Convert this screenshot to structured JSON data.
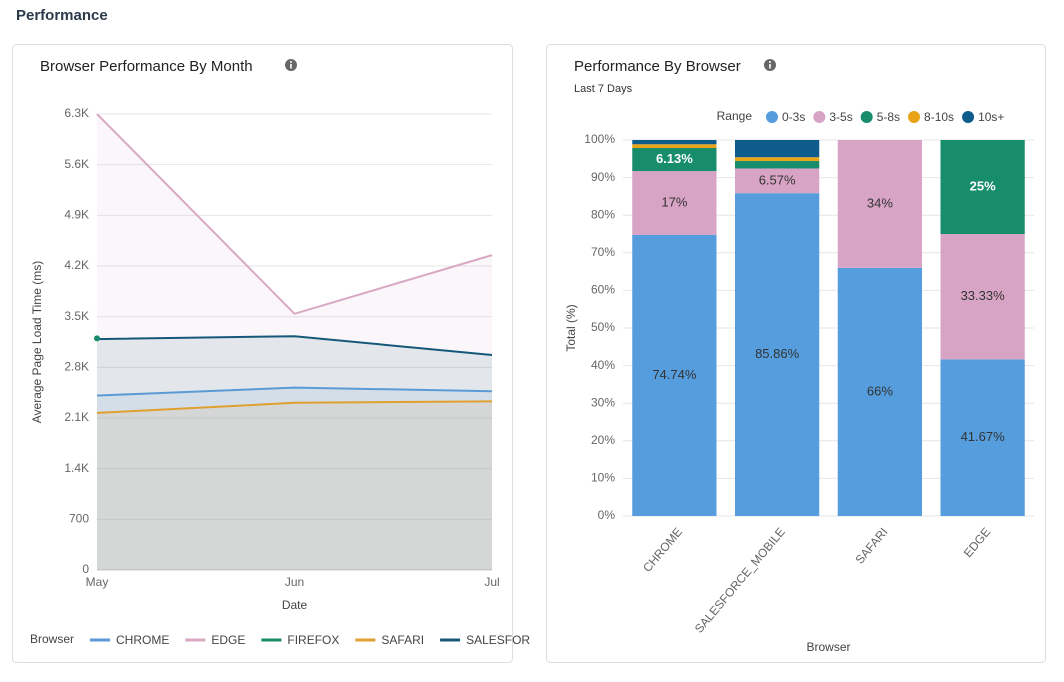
{
  "title": "Performance",
  "chart_data": [
    {
      "type": "line",
      "title": "Browser Performance By Month",
      "x_label": "Date",
      "y_label": "Average Page Load Time (ms)",
      "legend_title": "Browser",
      "legend": "bottom",
      "categories": [
        "May",
        "Jun",
        "Jul"
      ],
      "ylim": [
        0,
        6300
      ],
      "yticks": [
        0,
        700,
        {
          "value": 1400,
          "label": "1.4K"
        },
        {
          "value": 2100,
          "label": "2.1K"
        },
        {
          "value": 2800,
          "label": "2.8K"
        },
        {
          "value": 3500,
          "label": "3.5K"
        },
        {
          "value": 4200,
          "label": "4.2K"
        },
        {
          "value": 4900,
          "label": "4.9K"
        },
        {
          "value": 5600,
          "label": "5.6K"
        },
        {
          "value": 6300,
          "label": "6.3K"
        }
      ],
      "grid": true,
      "series": [
        {
          "name": "CHROME",
          "color": "#5b9bd5",
          "values": [
            2410,
            2520,
            2470
          ]
        },
        {
          "name": "EDGE",
          "color": "#d9a9c3",
          "values": [
            6300,
            3540,
            4350
          ]
        },
        {
          "name": "FIREFOX",
          "color": "#1a8a6a",
          "values": [
            3200,
            null,
            null
          ]
        },
        {
          "name": "SAFARI",
          "color": "#e0a030",
          "values": [
            2170,
            2310,
            2330
          ]
        },
        {
          "name": "SALESFOR",
          "color": "#16587a",
          "values": [
            3190,
            3230,
            2970
          ]
        }
      ]
    },
    {
      "type": "stacked_bar",
      "title": "Performance By Browser",
      "subtitle": "Last 7 Days",
      "x_label": "Browser",
      "y_label": "Total (%)",
      "legend_title": "Range",
      "legend": "top",
      "categories": [
        "CHROME",
        "SALESFORCE_MOBILE",
        "SAFARI",
        "EDGE"
      ],
      "ylim": [
        0,
        100
      ],
      "yticks": [
        {
          "value": 0,
          "label": "0%"
        },
        {
          "value": 10,
          "label": "10%"
        },
        {
          "value": 20,
          "label": "20%"
        },
        {
          "value": 30,
          "label": "30%"
        },
        {
          "value": 40,
          "label": "40%"
        },
        {
          "value": 50,
          "label": "50%"
        },
        {
          "value": 60,
          "label": "60%"
        },
        {
          "value": 70,
          "label": "70%"
        },
        {
          "value": 80,
          "label": "80%"
        },
        {
          "value": 90,
          "label": "90%"
        },
        {
          "value": 100,
          "label": "100%"
        }
      ],
      "grid": true,
      "series": [
        {
          "name": "0-3s",
          "color": "#559ddd",
          "values": [
            74.74,
            85.86,
            66,
            41.67
          ],
          "value_labels": [
            "74.74%",
            "85.86%",
            "66%",
            "41.67%"
          ]
        },
        {
          "name": "3-5s",
          "color": "#d8a4c5",
          "values": [
            17,
            6.57,
            34,
            33.33
          ],
          "value_labels": [
            "17%",
            "6.57%",
            "34%",
            "33.33%"
          ]
        },
        {
          "name": "5-8s",
          "color": "#178d6b",
          "values": [
            6.13,
            2,
            0,
            25
          ],
          "value_labels": [
            "6.13%",
            null,
            null,
            "25%"
          ]
        },
        {
          "name": "8-10s",
          "color": "#e8a317",
          "values": [
            1,
            1,
            0,
            0
          ]
        },
        {
          "name": "10s+",
          "color": "#0d5c8c",
          "values": [
            1.13,
            4.57,
            0,
            0
          ]
        }
      ]
    }
  ]
}
